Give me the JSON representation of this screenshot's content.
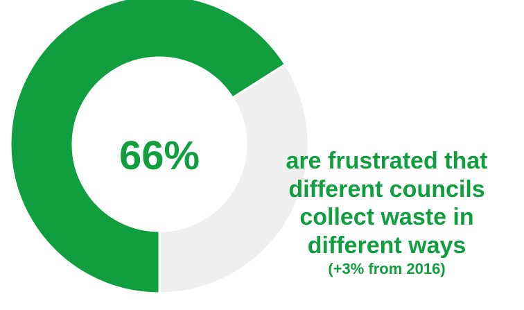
{
  "chart_data": {
    "type": "pie",
    "categories": [
      "frustrated",
      "other"
    ],
    "values": [
      66,
      34
    ],
    "center_label": "66%",
    "caption": "are frustrated that\ndifferent councils\ncollect waste in\ndifferent ways",
    "subcaption": "(+3% from 2016)",
    "colors": {
      "primary": "#109E3F",
      "remainder": "#EFEFEF",
      "text": "#109E3F"
    }
  }
}
